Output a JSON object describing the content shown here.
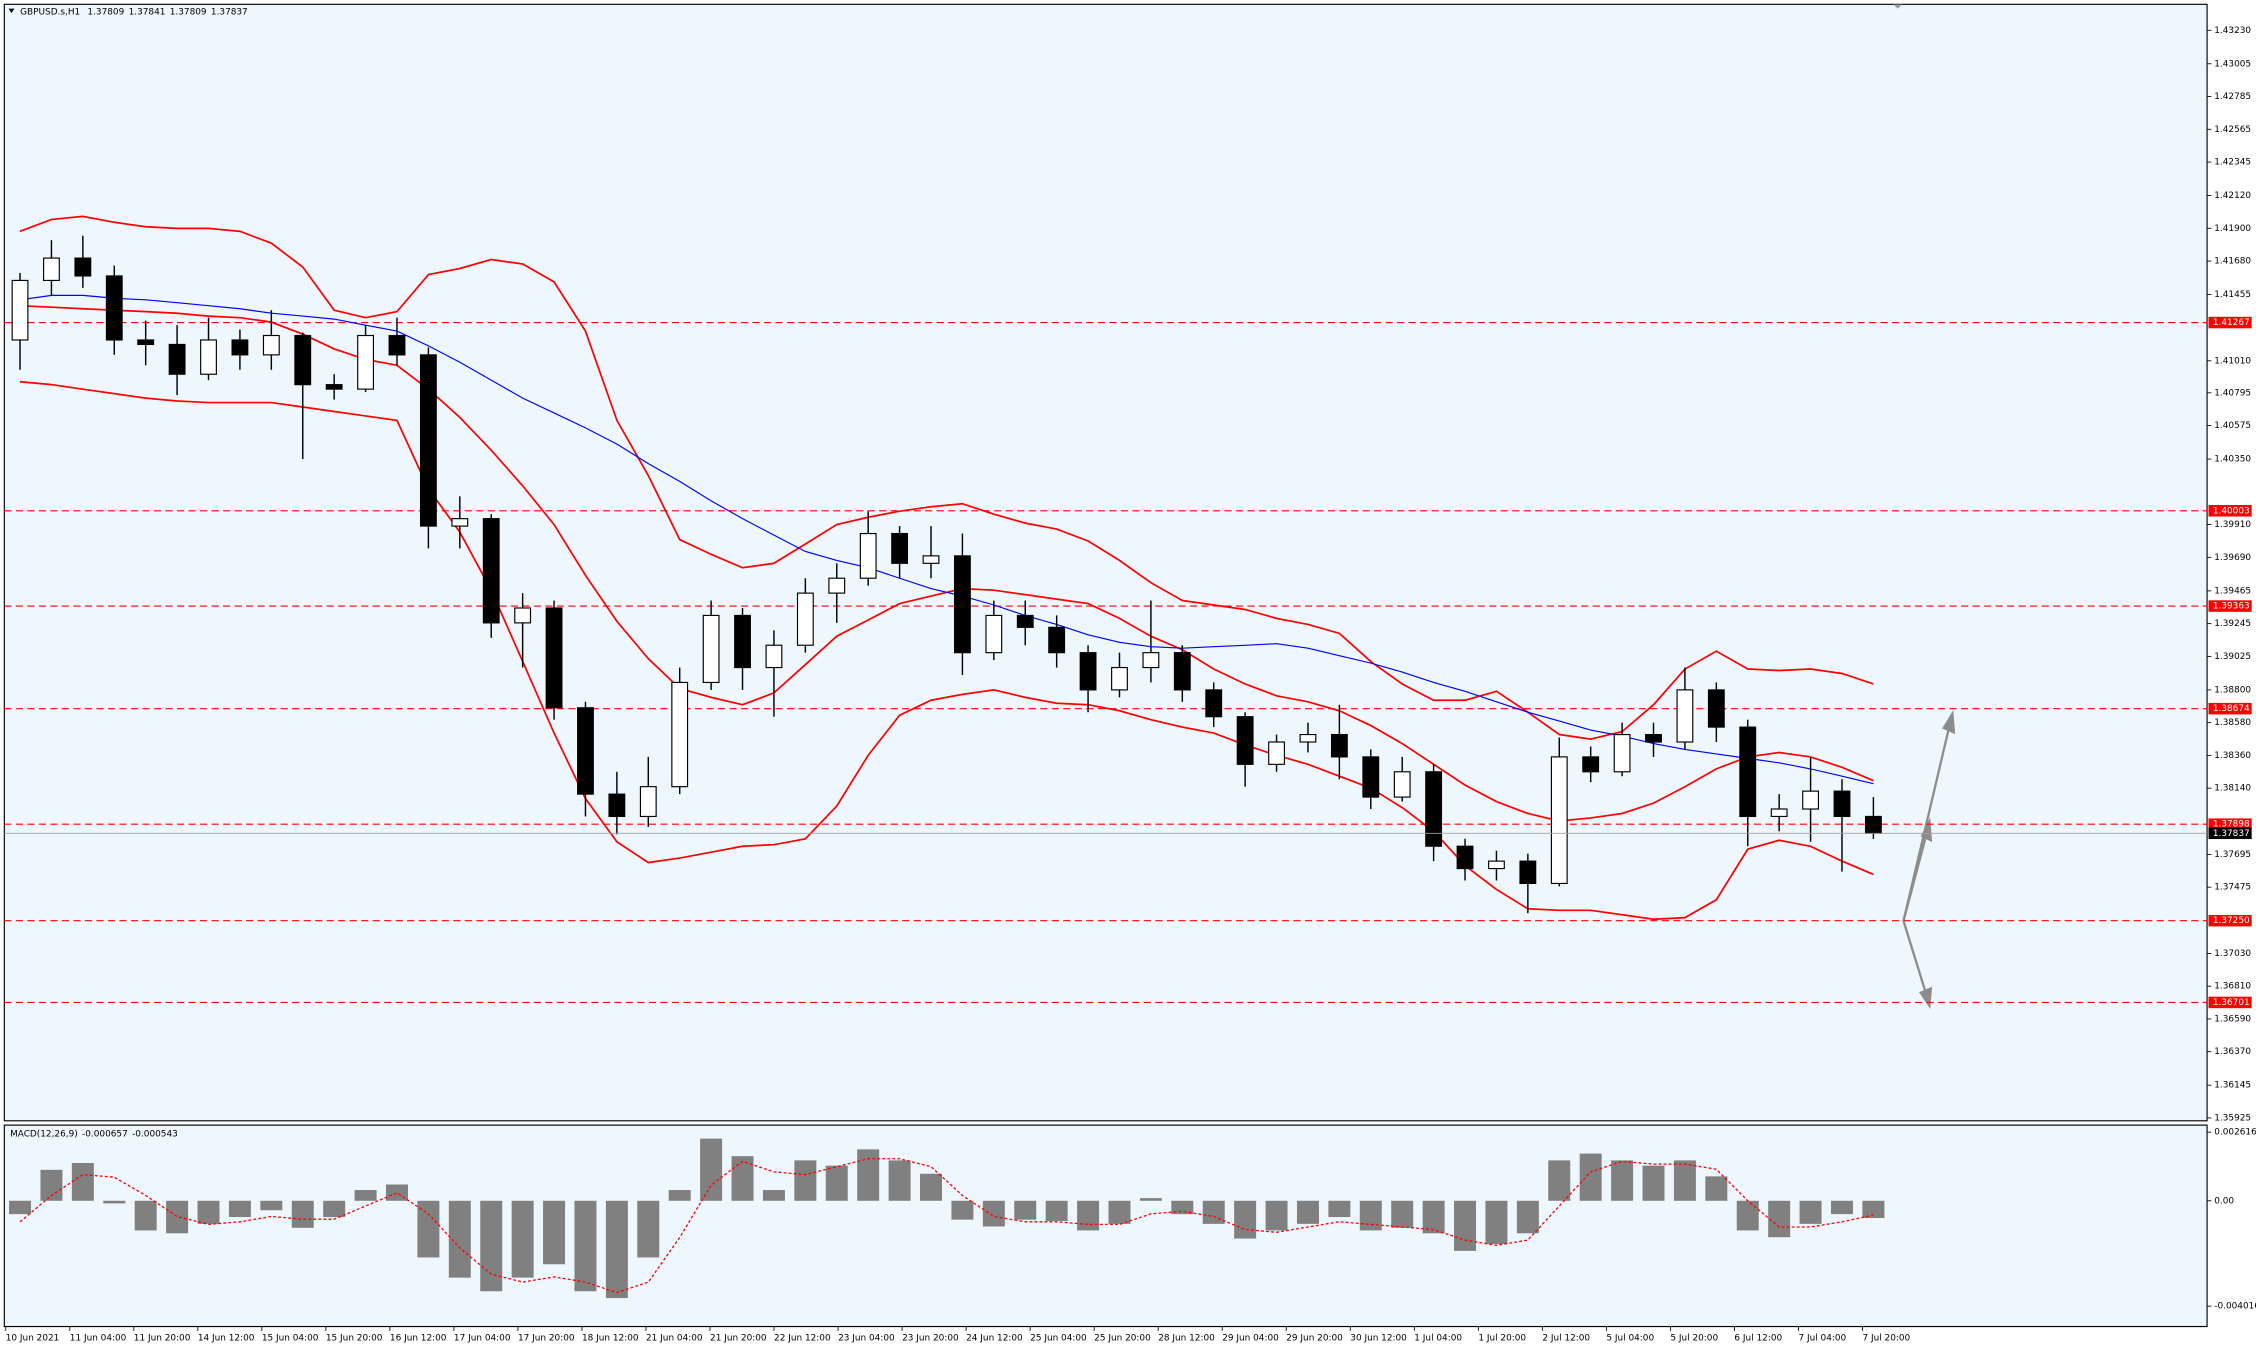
{
  "chart_data": [
    {
      "type": "candlestick",
      "title": "GBPUSD.s,H1",
      "ohlc_header": [
        1.37809,
        1.37841,
        1.37809,
        1.37837
      ],
      "x_labels": [
        "10 Jun 2021",
        "11 Jun 04:00",
        "11 Jun 20:00",
        "14 Jun 12:00",
        "15 Jun 04:00",
        "15 Jun 20:00",
        "16 Jun 12:00",
        "17 Jun 04:00",
        "17 Jun 20:00",
        "18 Jun 12:00",
        "21 Jun 04:00",
        "21 Jun 20:00",
        "22 Jun 12:00",
        "23 Jun 04:00",
        "23 Jun 20:00",
        "24 Jun 12:00",
        "25 Jun 04:00",
        "25 Jun 20:00",
        "28 Jun 12:00",
        "29 Jun 04:00",
        "29 Jun 20:00",
        "30 Jun 12:00",
        "1 Jul 04:00",
        "1 Jul 20:00",
        "2 Jul 12:00",
        "5 Jul 04:00",
        "5 Jul 20:00",
        "6 Jul 12:00",
        "7 Jul 04:00",
        "7 Jul 20:00"
      ],
      "open": [
        1.4115,
        1.4155,
        1.417,
        1.4158,
        1.4115,
        1.4112,
        1.4092,
        1.4115,
        1.4105,
        1.4118,
        1.4085,
        1.4082,
        1.4118,
        1.4105,
        1.399,
        1.3995,
        1.3925,
        1.3935,
        1.3868,
        1.381,
        1.3795,
        1.3815,
        1.3885,
        1.393,
        1.3895,
        1.391,
        1.3945,
        1.3955,
        1.3985,
        1.3965,
        1.397,
        1.3905,
        1.393,
        1.3922,
        1.3905,
        1.388,
        1.3895,
        1.3905,
        1.388,
        1.3862,
        1.383,
        1.3845,
        1.385,
        1.3835,
        1.3808,
        1.3825,
        1.3775,
        1.376,
        1.3765,
        1.375,
        1.3835,
        1.3825,
        1.385,
        1.3845,
        1.388,
        1.3855,
        1.3795,
        1.38,
        1.3812,
        1.3795
      ],
      "high": [
        1.416,
        1.4182,
        1.4185,
        1.4165,
        1.4128,
        1.4125,
        1.413,
        1.4122,
        1.4135,
        1.412,
        1.4092,
        1.4125,
        1.413,
        1.411,
        1.401,
        1.3998,
        1.3945,
        1.394,
        1.3872,
        1.3825,
        1.3835,
        1.3895,
        1.394,
        1.3935,
        1.392,
        1.3955,
        1.3965,
        1.4,
        1.399,
        1.399,
        1.3985,
        1.394,
        1.394,
        1.393,
        1.391,
        1.3905,
        1.394,
        1.391,
        1.3885,
        1.3865,
        1.385,
        1.3858,
        1.387,
        1.384,
        1.3835,
        1.383,
        1.378,
        1.3772,
        1.377,
        1.3848,
        1.3842,
        1.3858,
        1.3858,
        1.3895,
        1.3885,
        1.386,
        1.381,
        1.3835,
        1.382,
        1.3808
      ],
      "low": [
        1.4095,
        1.4145,
        1.415,
        1.4105,
        1.4098,
        1.4078,
        1.4088,
        1.4095,
        1.4095,
        1.4035,
        1.4075,
        1.408,
        1.4098,
        1.3975,
        1.3975,
        1.3915,
        1.3895,
        1.386,
        1.3795,
        1.3783,
        1.3788,
        1.381,
        1.388,
        1.388,
        1.3862,
        1.3905,
        1.3925,
        1.395,
        1.3955,
        1.3955,
        1.389,
        1.39,
        1.391,
        1.3895,
        1.3865,
        1.3875,
        1.3885,
        1.3872,
        1.3855,
        1.3815,
        1.3825,
        1.3838,
        1.382,
        1.38,
        1.3805,
        1.3765,
        1.3752,
        1.3752,
        1.373,
        1.3748,
        1.3818,
        1.3822,
        1.3835,
        1.384,
        1.3845,
        1.3775,
        1.3785,
        1.3778,
        1.3758,
        1.378
      ],
      "close": [
        1.4155,
        1.417,
        1.4158,
        1.4115,
        1.4112,
        1.4092,
        1.4115,
        1.4105,
        1.4118,
        1.4085,
        1.4082,
        1.4118,
        1.4105,
        1.399,
        1.3995,
        1.3925,
        1.3935,
        1.3868,
        1.381,
        1.3795,
        1.3815,
        1.3885,
        1.393,
        1.3895,
        1.391,
        1.3945,
        1.3955,
        1.3985,
        1.3965,
        1.397,
        1.3905,
        1.393,
        1.3922,
        1.3905,
        1.388,
        1.3895,
        1.3905,
        1.388,
        1.3862,
        1.383,
        1.3845,
        1.385,
        1.3835,
        1.3808,
        1.3825,
        1.3775,
        1.376,
        1.3765,
        1.375,
        1.3835,
        1.3825,
        1.385,
        1.3845,
        1.388,
        1.3855,
        1.3795,
        1.38,
        1.3812,
        1.3795,
        1.37837
      ],
      "candle_color": "#000000",
      "overlays": [
        {
          "color": "#ff0000",
          "values": [
            1.4188,
            1.4196,
            1.4198,
            1.4194,
            1.4191,
            1.419,
            1.419,
            1.4188,
            1.418,
            1.4164,
            1.4135,
            1.413,
            1.4134,
            1.4159,
            1.4163,
            1.4169,
            1.4166,
            1.4154,
            1.4121,
            1.4061,
            1.4024,
            1.3981,
            1.3971,
            1.3962,
            1.3965,
            1.3978,
            1.3991,
            1.3996,
            1.4,
            1.4003,
            1.4005,
            1.3998,
            1.3992,
            1.3988,
            1.398,
            1.3967,
            1.3952,
            1.394,
            1.3937,
            1.3934,
            1.3928,
            1.3924,
            1.3918,
            1.3899,
            1.3884,
            1.3873,
            1.3873,
            1.3879,
            1.3865,
            1.385,
            1.3847,
            1.3852,
            1.387,
            1.3894,
            1.3906,
            1.3894,
            1.3893,
            1.3894,
            1.3891,
            1.3884
          ]
        },
        {
          "color": "#ff0000",
          "values": [
            1.4138,
            1.4137,
            1.4136,
            1.4135,
            1.4134,
            1.4133,
            1.4131,
            1.413,
            1.4127,
            1.4119,
            1.4109,
            1.4102,
            1.4098,
            1.4082,
            1.4063,
            1.4041,
            1.4017,
            1.3991,
            1.3957,
            1.3926,
            1.3901,
            1.3881,
            1.3875,
            1.387,
            1.3878,
            1.3897,
            1.3916,
            1.3927,
            1.3938,
            1.3943,
            1.3948,
            1.3947,
            1.3944,
            1.3941,
            1.3938,
            1.3928,
            1.3916,
            1.3907,
            1.3894,
            1.3884,
            1.3876,
            1.3872,
            1.3866,
            1.3856,
            1.3844,
            1.383,
            1.3816,
            1.3805,
            1.3797,
            1.3792,
            1.3794,
            1.3797,
            1.3804,
            1.3815,
            1.3827,
            1.3835,
            1.3838,
            1.3835,
            1.3828,
            1.3819
          ]
        },
        {
          "color": "#ff0000",
          "values": [
            1.4087,
            1.4085,
            1.4082,
            1.4079,
            1.4076,
            1.4074,
            1.4073,
            1.4073,
            1.4073,
            1.407,
            1.4067,
            1.4064,
            1.4061,
            1.4015,
            1.3986,
            1.3947,
            1.3899,
            1.3851,
            1.3807,
            1.3778,
            1.3764,
            1.3767,
            1.3771,
            1.3775,
            1.3776,
            1.378,
            1.3802,
            1.3836,
            1.3863,
            1.3873,
            1.3877,
            1.388,
            1.3875,
            1.3871,
            1.387,
            1.3866,
            1.386,
            1.3855,
            1.3851,
            1.3843,
            1.3836,
            1.383,
            1.3822,
            1.3814,
            1.3801,
            1.3785,
            1.3762,
            1.3746,
            1.3733,
            1.3732,
            1.3732,
            1.3729,
            1.3726,
            1.3727,
            1.3739,
            1.3773,
            1.3779,
            1.3775,
            1.3765,
            1.3756
          ]
        },
        {
          "color": "#0000ff",
          "values": [
            1.4142,
            1.4145,
            1.4145,
            1.4143,
            1.4142,
            1.414,
            1.4138,
            1.4136,
            1.4133,
            1.4131,
            1.4129,
            1.4125,
            1.4121,
            1.4111,
            1.41,
            1.4088,
            1.4076,
            1.4066,
            1.4056,
            1.4045,
            1.4032,
            1.402,
            1.4007,
            1.3995,
            1.3984,
            1.3973,
            1.3967,
            1.3962,
            1.3955,
            1.3948,
            1.3943,
            1.3937,
            1.393,
            1.3924,
            1.3917,
            1.3912,
            1.3909,
            1.3908,
            1.3909,
            1.391,
            1.3911,
            1.3908,
            1.3903,
            1.3898,
            1.3892,
            1.3885,
            1.3879,
            1.3872,
            1.3865,
            1.3859,
            1.3853,
            1.3849,
            1.3844,
            1.384,
            1.3837,
            1.3834,
            1.3831,
            1.3827,
            1.3822,
            1.3817
          ]
        }
      ],
      "ylim": [
        1.35906,
        1.43385
      ],
      "yticks": [
        {
          "value": 1.4323,
          "label": "1.43230"
        },
        1.43005,
        1.42785,
        1.42565,
        1.42345,
        {
          "value": 1.4212,
          "label": "1.42120"
        },
        {
          "value": 1.419,
          "label": "1.41900"
        },
        {
          "value": 1.4168,
          "label": "1.41680"
        },
        1.41455,
        {
          "value": 1.4101,
          "label": "1.41010"
        },
        1.40795,
        1.40575,
        {
          "value": 1.4035,
          "label": "1.40350"
        },
        {
          "value": 1.3991,
          "label": "1.39910"
        },
        {
          "value": 1.3969,
          "label": "1.39690"
        },
        1.39465,
        1.39245,
        1.39025,
        {
          "value": 1.388,
          "label": "1.38800"
        },
        {
          "value": 1.3858,
          "label": "1.38580"
        },
        {
          "value": 1.3836,
          "label": "1.38360"
        },
        {
          "value": 1.3814,
          "label": "1.38140"
        },
        1.37695,
        1.37475,
        {
          "value": 1.3703,
          "label": "1.37030"
        },
        {
          "value": 1.3681,
          "label": "1.36810"
        },
        {
          "value": 1.3659,
          "label": "1.36590"
        },
        {
          "value": 1.3637,
          "label": "1.36370"
        },
        1.36145,
        1.35925
      ],
      "levels": [
        1.41267,
        1.40003,
        1.39363,
        1.38674,
        1.37898,
        {
          "value": 1.3725,
          "label": "1.37250"
        },
        1.36701
      ],
      "level_color": "#ff0000",
      "grid": false
    },
    {
      "type": "macd",
      "title": "MACD(12,26,9)",
      "header_values": [
        -0.000657,
        -0.000543
      ],
      "histogram": [
        -0.00051,
        0.00118,
        0.00144,
        -0.0001,
        -0.00113,
        -0.00124,
        -0.00088,
        -0.00062,
        -0.00036,
        -0.00103,
        -0.00062,
        0.00041,
        0.00062,
        -0.00216,
        -0.00293,
        -0.00345,
        -0.00293,
        -0.00242,
        -0.00345,
        -0.00371,
        -0.00216,
        0.00041,
        0.00237,
        0.0017,
        0.00041,
        0.00154,
        0.00134,
        0.00196,
        0.00154,
        0.00103,
        -0.00072,
        -0.00098,
        -0.00072,
        -0.00077,
        -0.00113,
        -0.00088,
        0.0001,
        -0.00051,
        -0.00088,
        -0.00144,
        -0.00113,
        -0.00088,
        -0.00062,
        -0.00113,
        -0.00103,
        -0.00124,
        -0.00191,
        -0.00165,
        -0.00124,
        0.00154,
        0.0018,
        0.00154,
        0.00134,
        0.00154,
        0.00093,
        -0.00113,
        -0.00139,
        -0.00088,
        -0.00051,
        -0.000657
      ],
      "signal": [
        -0.0008,
        0.0002,
        0.001,
        0.0009,
        0.0002,
        -0.0006,
        -0.0009,
        -0.0008,
        -0.0006,
        -0.0007,
        -0.0007,
        -0.0002,
        0.0003,
        -0.0005,
        -0.0018,
        -0.0028,
        -0.0031,
        -0.0029,
        -0.0031,
        -0.0035,
        -0.0031,
        -0.0014,
        0.0006,
        0.0015,
        0.0011,
        0.001,
        0.0013,
        0.0016,
        0.0016,
        0.0013,
        0.0002,
        -0.0006,
        -0.0008,
        -0.0008,
        -0.0009,
        -0.0009,
        -0.0005,
        -0.0004,
        -0.0006,
        -0.0011,
        -0.0012,
        -0.001,
        -0.0008,
        -0.0009,
        -0.001,
        -0.0011,
        -0.0015,
        -0.0017,
        -0.0015,
        -0.0002,
        0.0011,
        0.0015,
        0.0014,
        0.0014,
        0.0012,
        0,
        -0.001,
        -0.001,
        -0.0008,
        -0.000543
      ],
      "histogram_color": "#808080",
      "signal_color": "#ff0000",
      "ylim": [
        -0.00474,
        0.00283
      ],
      "yticks": [
        0.002616,
        {
          "value": 0,
          "label": "0.00"
        },
        -0.004016
      ]
    }
  ]
}
